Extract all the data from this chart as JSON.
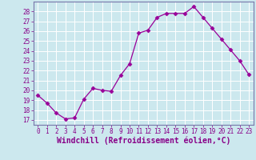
{
  "x": [
    0,
    1,
    2,
    3,
    4,
    5,
    6,
    7,
    8,
    9,
    10,
    11,
    12,
    13,
    14,
    15,
    16,
    17,
    18,
    19,
    20,
    21,
    22,
    23
  ],
  "y": [
    19.5,
    18.7,
    17.7,
    17.1,
    17.2,
    19.1,
    20.2,
    20.0,
    19.9,
    21.5,
    22.7,
    25.8,
    26.1,
    27.4,
    27.8,
    27.8,
    27.8,
    28.5,
    27.4,
    26.3,
    25.2,
    24.1,
    23.0,
    21.6
  ],
  "line_color": "#990099",
  "marker": "D",
  "marker_size": 2.5,
  "background_color": "#cce8ee",
  "grid_color": "#b0d8e0",
  "xlabel": "Windchill (Refroidissement éolien,°C)",
  "xlabel_color": "#880088",
  "ylim": [
    16.5,
    29.0
  ],
  "xlim": [
    -0.5,
    23.5
  ],
  "yticks": [
    17,
    18,
    19,
    20,
    21,
    22,
    23,
    24,
    25,
    26,
    27,
    28
  ],
  "xticks": [
    0,
    1,
    2,
    3,
    4,
    5,
    6,
    7,
    8,
    9,
    10,
    11,
    12,
    13,
    14,
    15,
    16,
    17,
    18,
    19,
    20,
    21,
    22,
    23
  ],
  "tick_color": "#880088",
  "tick_fontsize": 5.5,
  "xlabel_fontsize": 7.0,
  "spine_color": "#7777aa",
  "line_width": 0.9
}
